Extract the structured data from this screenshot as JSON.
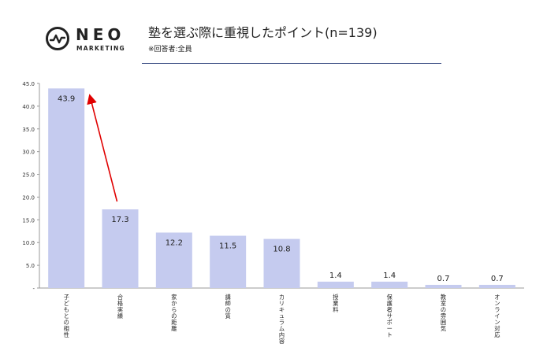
{
  "logo": {
    "wordmark": "NEO",
    "subline": "MARKETING"
  },
  "header": {
    "title": "塾を選ぶ際に重視したポイント(n=139)",
    "subtitle": "※回答者:全員"
  },
  "colors": {
    "bar": "#c5cbef",
    "arrow": "#e00000",
    "rule": "#2c3f7a",
    "axis": "#999999"
  },
  "chart_data": {
    "type": "bar",
    "categories": [
      "子どもとの相性",
      "合格実績",
      "家からの距離",
      "講師の質",
      "カリキュラム内容",
      "授業料",
      "保護者サポート",
      "教室の雰囲気",
      "オンライン対応"
    ],
    "values": [
      43.9,
      17.3,
      12.2,
      11.5,
      10.8,
      1.4,
      1.4,
      0.7,
      0.7
    ],
    "data_labels": [
      "43.9",
      "17.3",
      "12.2",
      "11.5",
      "10.8",
      "1.4",
      "1.4",
      "0.7",
      "0.7"
    ],
    "ylim": [
      0,
      45
    ],
    "yticks": [
      "-",
      "5.0",
      "10.0",
      "15.0",
      "20.0",
      "25.0",
      "30.0",
      "35.0",
      "40.0",
      "45.0"
    ],
    "grid": false,
    "annotations": [
      {
        "type": "arrow",
        "from_category": "合格実績",
        "to_category": "子どもとの相性"
      }
    ]
  }
}
